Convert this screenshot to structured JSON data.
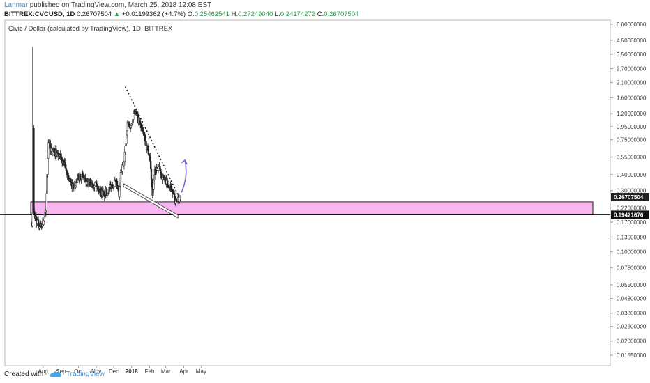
{
  "header": {
    "author": "Lanmar",
    "published_text": "published on TradingView.com, March 25, 2018 12:08 EST",
    "symbol": "BITTREX:CVCUSD, 1D",
    "last": "0.26707504",
    "change": "+0.01199362 (+4.7%)",
    "o_label": "O:",
    "o": "0.25462541",
    "h_label": "H:",
    "h": "0.27249040",
    "l_label": "L:",
    "l": "0.24174272",
    "c_label": "C:",
    "c": "0.26707504"
  },
  "footer": {
    "created_with": "Created with",
    "brand": "TradingView"
  },
  "chart_data": {
    "type": "candlestick",
    "title": "Civic / Dollar (calculated by TradingView), 1D, BITTREX",
    "y_scale": "log",
    "ylim": [
      0.0135,
      6.3
    ],
    "y_ticks": [
      6.0,
      4.5,
      3.5,
      2.7,
      2.1,
      1.6,
      1.2,
      0.95,
      0.75,
      0.55,
      0.4,
      0.3,
      0.22,
      0.17,
      0.13,
      0.1,
      0.075,
      0.055,
      0.043,
      0.033,
      0.026,
      0.02,
      0.0155
    ],
    "y_tick_labels": [
      "6.00000000",
      "4.50000000",
      "3.50000000",
      "2.70000000",
      "2.10000000",
      "1.60000000",
      "1.20000000",
      "0.95000000",
      "0.75000000",
      "0.55000000",
      "0.40000000",
      "0.30000000",
      "0.22000000",
      "0.17000000",
      "0.13000000",
      "0.10000000",
      "0.07500000",
      "0.05500000",
      "0.04300000",
      "0.03300000",
      "0.02600000",
      "0.02000000",
      "0.01550000"
    ],
    "x_labels": [
      "Aug",
      "Sep",
      "Oct",
      "Nov",
      "Dec",
      "2018",
      "Feb",
      "Mar",
      "Apr",
      "May"
    ],
    "price_markers": [
      {
        "label": "0.26707504",
        "value": 0.267,
        "style": "dark"
      },
      {
        "label": "0.19421676",
        "value": 0.1942,
        "style": "black"
      }
    ],
    "support_zone": {
      "low": 0.194,
      "high": 0.245,
      "color": "#f7b6f0"
    },
    "horizontal_line": 0.1942,
    "price_path_weekly": [
      [
        "2017-07-13",
        0.17
      ],
      [
        "2017-07-14",
        4.0
      ],
      [
        "2017-07-16",
        0.2
      ],
      [
        "2017-07-20",
        0.18
      ],
      [
        "2017-07-25",
        0.16
      ],
      [
        "2017-08-01",
        0.17
      ],
      [
        "2017-08-06",
        0.21
      ],
      [
        "2017-08-10",
        0.75
      ],
      [
        "2017-08-15",
        0.62
      ],
      [
        "2017-08-22",
        0.6
      ],
      [
        "2017-08-29",
        0.55
      ],
      [
        "2017-09-05",
        0.5
      ],
      [
        "2017-09-12",
        0.4
      ],
      [
        "2017-09-19",
        0.33
      ],
      [
        "2017-09-26",
        0.33
      ],
      [
        "2017-10-03",
        0.4
      ],
      [
        "2017-10-10",
        0.38
      ],
      [
        "2017-10-17",
        0.33
      ],
      [
        "2017-10-24",
        0.35
      ],
      [
        "2017-10-31",
        0.34
      ],
      [
        "2017-11-07",
        0.3
      ],
      [
        "2017-11-14",
        0.28
      ],
      [
        "2017-11-21",
        0.3
      ],
      [
        "2017-11-28",
        0.33
      ],
      [
        "2017-12-05",
        0.35
      ],
      [
        "2017-12-10",
        0.27
      ],
      [
        "2017-12-13",
        0.4
      ],
      [
        "2017-12-18",
        0.5
      ],
      [
        "2017-12-22",
        0.7
      ],
      [
        "2017-12-25",
        1.0
      ],
      [
        "2017-12-31",
        0.95
      ],
      [
        "2018-01-05",
        1.3
      ],
      [
        "2018-01-12",
        1.1
      ],
      [
        "2018-01-19",
        0.9
      ],
      [
        "2018-01-26",
        0.7
      ],
      [
        "2018-02-01",
        0.55
      ],
      [
        "2018-02-06",
        0.29
      ],
      [
        "2018-02-10",
        0.42
      ],
      [
        "2018-02-17",
        0.45
      ],
      [
        "2018-02-24",
        0.38
      ],
      [
        "2018-03-03",
        0.35
      ],
      [
        "2018-03-10",
        0.32
      ],
      [
        "2018-03-17",
        0.25
      ],
      [
        "2018-03-20",
        0.24
      ],
      [
        "2018-03-25",
        0.267
      ]
    ],
    "annotations": {
      "descending_trendline": [
        [
          "2017-12-21",
          1.95
        ],
        [
          "2018-03-28",
          0.245
        ]
      ],
      "falling_channel_lines": [
        [
          "2017-12-18",
          0.34
        ],
        [
          "2018-03-22",
          0.193
        ]
      ],
      "projection_arrow": [
        [
          "2018-03-28",
          0.29
        ],
        [
          "2018-04-03",
          0.52
        ]
      ]
    }
  }
}
